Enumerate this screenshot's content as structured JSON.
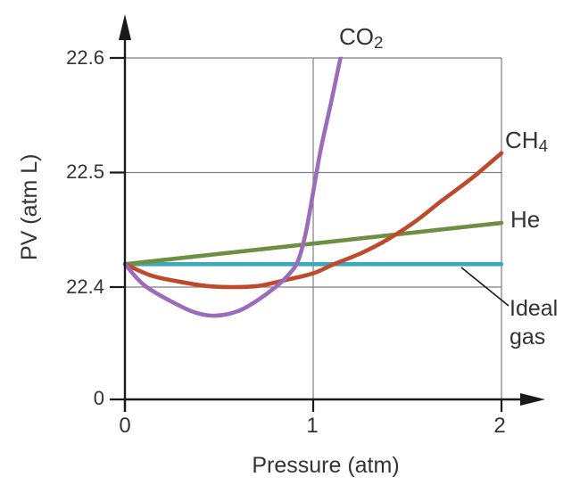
{
  "figure": {
    "xlabel": "Pressure (atm)",
    "ylabel": "PV (atm L)",
    "y_tick_labels": [
      "22.6",
      "22.5",
      "22.4"
    ],
    "y_origin_label": "0",
    "x_tick_labels": [
      "0",
      "1",
      "2"
    ],
    "curve_labels": {
      "co2": {
        "main": "CO",
        "sub": "2"
      },
      "ch4": {
        "main": "CH",
        "sub": "4"
      },
      "he": "He",
      "ideal_line1": "Ideal",
      "ideal_line2": "gas"
    }
  },
  "chart_data": {
    "type": "line",
    "title": "",
    "xlabel": "Pressure (atm)",
    "ylabel": "PV (atm L)",
    "xlim": [
      0,
      2
    ],
    "ylim_display": [
      22.4,
      22.6
    ],
    "x_ticks": [
      0,
      1,
      2
    ],
    "y_ticks": [
      22.4,
      22.5,
      22.6
    ],
    "grid": true,
    "legend": "labels at curve ends",
    "series": [
      {
        "id": "ideal",
        "name": "Ideal gas",
        "color": "#3ba9bc",
        "x": [
          0,
          2
        ],
        "y": [
          22.42,
          22.42
        ]
      },
      {
        "id": "he",
        "name": "He",
        "color": "#6e8e41",
        "x": [
          0,
          2
        ],
        "y": [
          22.42,
          22.456
        ]
      },
      {
        "id": "ch4",
        "name": "CH4",
        "color": "#bf4a2b",
        "x": [
          0,
          0.14,
          0.28,
          0.43,
          0.57,
          0.71,
          0.85,
          1.0,
          1.11,
          1.26,
          1.4,
          1.54,
          1.68,
          1.85,
          2.0
        ],
        "y": [
          22.42,
          22.41,
          22.405,
          22.401,
          22.4,
          22.401,
          22.406,
          22.412,
          22.42,
          22.43,
          22.442,
          22.457,
          22.475,
          22.496,
          22.517
        ]
      },
      {
        "id": "co2",
        "name": "CO2",
        "color": "#9c6cbb",
        "x": [
          0,
          0.1,
          0.24,
          0.37,
          0.48,
          0.6,
          0.7,
          0.8,
          0.87,
          0.92,
          0.96,
          1.0,
          1.04,
          1.1,
          1.16
        ],
        "y": [
          22.42,
          22.402,
          22.388,
          22.378,
          22.375,
          22.379,
          22.388,
          22.4,
          22.411,
          22.423,
          22.447,
          22.483,
          22.52,
          22.565,
          22.612
        ]
      }
    ]
  },
  "colors": {
    "co2": "#9c6cbb",
    "ch4": "#bf4a2b",
    "he": "#6e8e41",
    "ideal": "#3ba9bc",
    "grid": "#7f7f7f",
    "axis": "#1a1a1a",
    "text": "#333333"
  }
}
